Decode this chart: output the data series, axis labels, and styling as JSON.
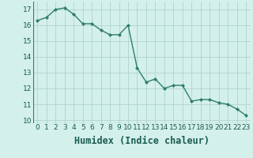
{
  "x": [
    0,
    1,
    2,
    3,
    4,
    5,
    6,
    7,
    8,
    9,
    10,
    11,
    12,
    13,
    14,
    15,
    16,
    17,
    18,
    19,
    20,
    21,
    22,
    23
  ],
  "y": [
    16.3,
    16.5,
    17.0,
    17.1,
    16.7,
    16.1,
    16.1,
    15.7,
    15.4,
    15.4,
    16.0,
    13.3,
    12.4,
    12.6,
    12.0,
    12.2,
    12.2,
    11.2,
    11.3,
    11.3,
    11.1,
    11.0,
    10.7,
    10.3
  ],
  "line_color": "#2e7d6e",
  "marker": "D",
  "marker_size": 2.0,
  "bg_color": "#d4f0ea",
  "grid_color": "#b0d4cc",
  "xlabel": "Humidex (Indice chaleur)",
  "ylim": [
    9.8,
    17.5
  ],
  "xlim": [
    -0.5,
    23.5
  ],
  "yticks": [
    10,
    11,
    12,
    13,
    14,
    15,
    16,
    17
  ],
  "xticks": [
    0,
    1,
    2,
    3,
    4,
    5,
    6,
    7,
    8,
    9,
    10,
    11,
    12,
    13,
    14,
    15,
    16,
    17,
    18,
    19,
    20,
    21,
    22,
    23
  ],
  "tick_fontsize": 6.5,
  "xlabel_fontsize": 8.5,
  "linewidth": 1.0
}
